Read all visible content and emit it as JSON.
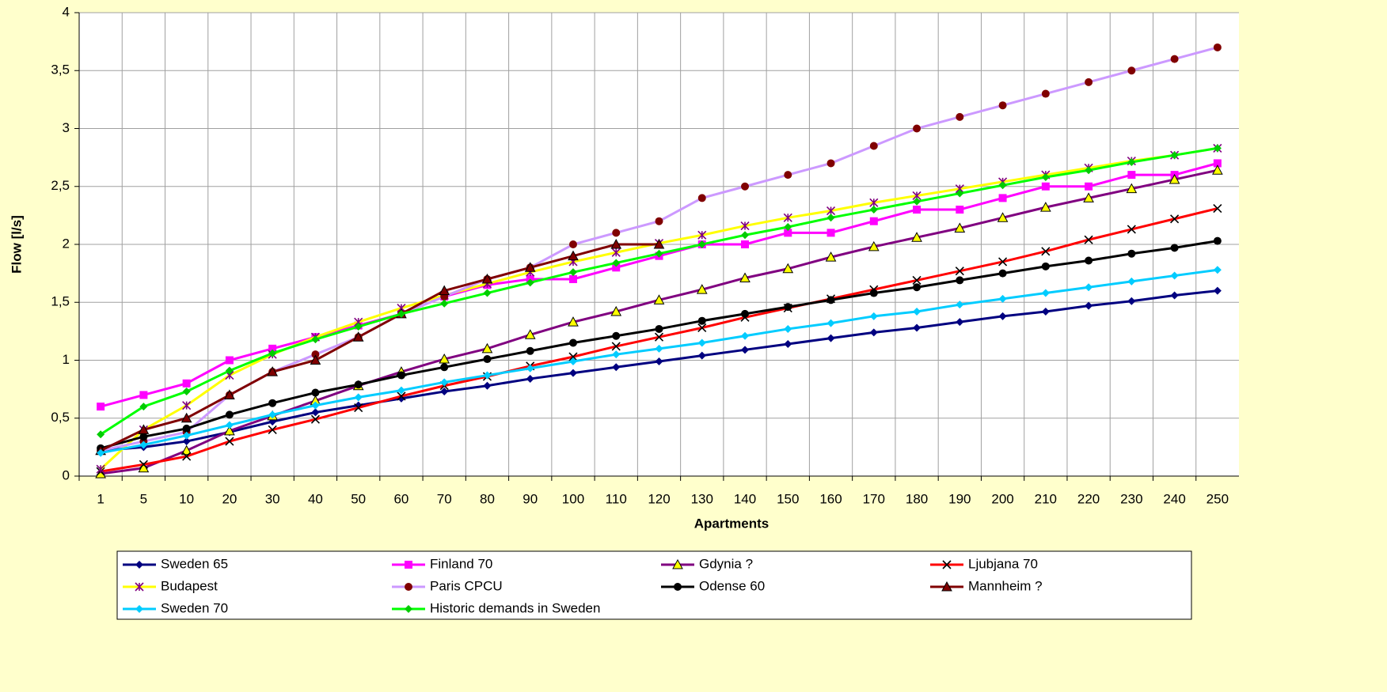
{
  "chart_data": {
    "type": "line",
    "x_label": "Apartments",
    "y_label": "Flow [l/s]",
    "categories": [
      "1",
      "5",
      "10",
      "20",
      "30",
      "40",
      "50",
      "60",
      "70",
      "80",
      "90",
      "100",
      "110",
      "120",
      "130",
      "140",
      "150",
      "160",
      "170",
      "180",
      "190",
      "200",
      "210",
      "220",
      "230",
      "240",
      "250"
    ],
    "ylim": [
      0,
      4
    ],
    "yticks": [
      0,
      {
        "value": 0.5,
        "label": "0,5"
      },
      1,
      {
        "value": 1.5,
        "label": "1,5"
      },
      2,
      {
        "value": 2.5,
        "label": "2,5"
      },
      3,
      {
        "value": 3.5,
        "label": "3,5"
      },
      4
    ],
    "grid": true,
    "legend": "bottom",
    "series": [
      {
        "name": "Sweden 65",
        "color": "#000080",
        "marker": "diamond",
        "marker_color": "#000080",
        "values": [
          0.22,
          0.25,
          0.3,
          0.38,
          0.47,
          0.55,
          0.61,
          0.67,
          0.73,
          0.78,
          0.84,
          0.89,
          0.94,
          0.99,
          1.04,
          1.09,
          1.14,
          1.19,
          1.24,
          1.28,
          1.33,
          1.38,
          1.42,
          1.47,
          1.51,
          1.56,
          1.6
        ]
      },
      {
        "name": "Finland 70",
        "color": "#ff00ff",
        "marker": "square",
        "marker_color": "#ff00ff",
        "values": [
          0.6,
          0.7,
          0.8,
          1.0,
          1.1,
          1.2,
          1.3,
          1.4,
          1.55,
          1.65,
          1.7,
          1.7,
          1.8,
          1.9,
          2.0,
          2.0,
          2.1,
          2.1,
          2.2,
          2.3,
          2.3,
          2.4,
          2.5,
          2.5,
          2.6,
          2.6,
          2.7
        ]
      },
      {
        "name": "Gdynia ?",
        "color": "#800080",
        "marker": "triangle",
        "marker_color": "#ffff00",
        "values": [
          0.02,
          0.07,
          0.22,
          0.39,
          0.52,
          0.65,
          0.78,
          0.9,
          1.01,
          1.1,
          1.22,
          1.33,
          1.42,
          1.52,
          1.61,
          1.71,
          1.79,
          1.89,
          1.98,
          2.06,
          2.14,
          2.23,
          2.32,
          2.4,
          2.48,
          2.56,
          2.64
        ]
      },
      {
        "name": "Ljubjana 70",
        "color": "#ff0000",
        "marker": "x",
        "marker_color": "#000000",
        "values": [
          0.04,
          0.1,
          0.17,
          0.3,
          0.4,
          0.49,
          0.59,
          0.69,
          0.78,
          0.86,
          0.95,
          1.03,
          1.12,
          1.2,
          1.28,
          1.37,
          1.45,
          1.53,
          1.61,
          1.69,
          1.77,
          1.85,
          1.94,
          2.04,
          2.13,
          2.22,
          2.31
        ]
      },
      {
        "name": "Budapest",
        "color": "#ffff00",
        "marker": "star",
        "marker_color": "#800080",
        "values": [
          0.06,
          0.4,
          0.61,
          0.87,
          1.05,
          1.2,
          1.33,
          1.45,
          1.56,
          1.66,
          1.76,
          1.85,
          1.93,
          2.01,
          2.08,
          2.16,
          2.23,
          2.29,
          2.36,
          2.42,
          2.48,
          2.54,
          2.6,
          2.66,
          2.72,
          2.77,
          2.83
        ]
      },
      {
        "name": "Paris CPCU",
        "color": "#cc99ff",
        "marker": "circle",
        "marker_color": "#800000",
        "values": [
          0.22,
          0.3,
          0.38,
          0.7,
          0.9,
          1.05,
          1.2,
          1.4,
          1.55,
          1.7,
          1.8,
          2.0,
          2.1,
          2.2,
          2.4,
          2.5,
          2.6,
          2.7,
          2.85,
          3.0,
          3.1,
          3.2,
          3.3,
          3.4,
          3.5,
          3.6,
          3.7
        ]
      },
      {
        "name": "Odense 60",
        "color": "#000000",
        "marker": "circle",
        "marker_color": "#000000",
        "values": [
          0.24,
          0.34,
          0.41,
          0.53,
          0.63,
          0.72,
          0.79,
          0.87,
          0.94,
          1.01,
          1.08,
          1.15,
          1.21,
          1.27,
          1.34,
          1.4,
          1.46,
          1.52,
          1.58,
          1.63,
          1.69,
          1.75,
          1.81,
          1.86,
          1.92,
          1.97,
          2.03
        ]
      },
      {
        "name": "Mannheim ?",
        "color": "#800000",
        "marker": "triangle",
        "marker_color": "#800000",
        "values": [
          0.22,
          0.4,
          0.5,
          0.7,
          0.9,
          1.0,
          1.2,
          1.4,
          1.6,
          1.7,
          1.8,
          1.9,
          2.0,
          2.0,
          null,
          null,
          null,
          null,
          null,
          null,
          null,
          null,
          null,
          null,
          null,
          null,
          null
        ]
      },
      {
        "name": "Sweden 70",
        "color": "#00ccff",
        "marker": "diamond",
        "marker_color": "#00ccff",
        "values": [
          0.2,
          0.27,
          0.35,
          0.44,
          0.53,
          0.61,
          0.68,
          0.74,
          0.81,
          0.87,
          0.93,
          0.99,
          1.05,
          1.1,
          1.15,
          1.21,
          1.27,
          1.32,
          1.38,
          1.42,
          1.48,
          1.53,
          1.58,
          1.63,
          1.68,
          1.73,
          1.78
        ]
      },
      {
        "name": "Historic demands in Sweden",
        "color": "#00ff00",
        "marker": "diamond",
        "marker_color": "#00cc00",
        "values": [
          0.36,
          0.6,
          0.73,
          0.91,
          1.06,
          1.18,
          1.29,
          1.4,
          1.49,
          1.58,
          1.67,
          1.76,
          1.84,
          1.92,
          2.0,
          2.08,
          2.15,
          2.23,
          2.3,
          2.37,
          2.44,
          2.51,
          2.58,
          2.64,
          2.71,
          2.77,
          2.83
        ]
      }
    ]
  }
}
